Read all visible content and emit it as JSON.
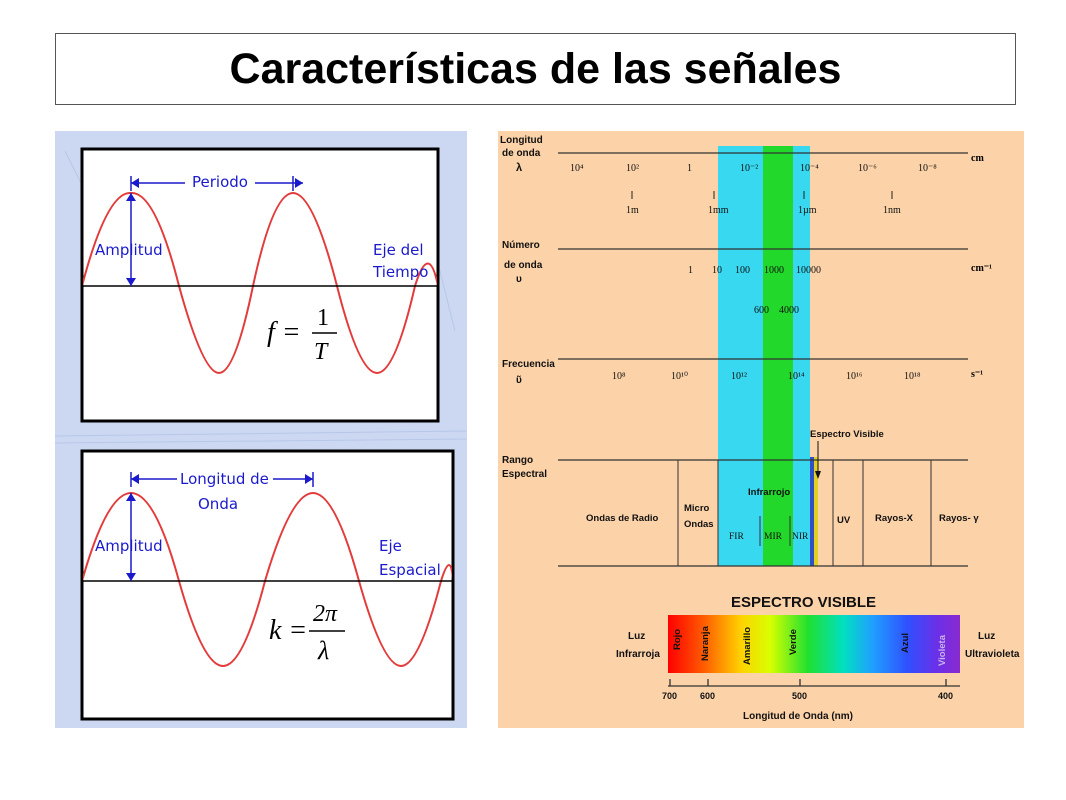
{
  "title": "Características de las señales",
  "time_panel": {
    "period_label": "Periodo",
    "amplitude_label": "Amplitud",
    "axis_label_line1": "Eje del",
    "axis_label_line2": "Tiempo",
    "formula_lhs": "f =",
    "formula_num": "1",
    "formula_den": "T"
  },
  "space_panel": {
    "wavelength_label_line1": "Longitud de",
    "wavelength_label_line2": "Onda",
    "amplitude_label": "Amplitud",
    "axis_label_line1": "Eje",
    "axis_label_line2": "Espacial",
    "formula_lhs": "k =",
    "formula_num": "2π",
    "formula_den": "λ"
  },
  "spectrum": {
    "wavelength_row": {
      "label_line1": "Longitud",
      "label_line2": "de onda",
      "label_line3": "λ",
      "unit": "cm",
      "ticks": [
        "10⁴",
        "10²",
        "1",
        "10⁻²",
        "10⁻⁴",
        "10⁻⁶",
        "10⁻⁸"
      ],
      "sub_ticks": [
        "1m",
        "1mm",
        "1µm",
        "1nm"
      ]
    },
    "wavenumber_row": {
      "label_line1": "Número",
      "label_line2": "de onda",
      "label_line3": "υ",
      "unit": "cm⁻¹",
      "ticks": [
        "1",
        "10",
        "100",
        "1000",
        "10000"
      ],
      "sub_ticks": [
        "600",
        "4000"
      ]
    },
    "frequency_row": {
      "label_line1": "Frecuencia",
      "label_line2": "ῦ",
      "unit": "s⁻¹",
      "ticks": [
        "10⁸",
        "10¹⁰",
        "10¹²",
        "10¹⁴",
        "10¹⁶",
        "10¹⁸"
      ]
    },
    "visible_marker_label": "Espectro Visible",
    "range_label_line1": "Rango",
    "range_label_line2": "Espectral",
    "ranges": {
      "radio": "Ondas de Radio",
      "micro_line1": "Micro",
      "micro_line2": "Ondas",
      "infrared": "Infrarrojo",
      "fir": "FIR",
      "mir": "MIR",
      "nir": "NIR",
      "uv": "UV",
      "xray": "Rayos-X",
      "gamma": "Rayos- γ"
    },
    "visible": {
      "title": "ESPECTRO VISIBLE",
      "left_label_line1": "Luz",
      "left_label_line2": "Infrarroja",
      "right_label_line1": "Luz",
      "right_label_line2": "Ultravioleta",
      "colors": [
        "Rojo",
        "Naranja",
        "Amarillo",
        "Verde",
        "Azul",
        "Violeta"
      ],
      "axis_ticks": [
        "700",
        "600",
        "500",
        "400"
      ],
      "axis_label": "Longitud de Onda (nm)"
    },
    "band_colors": {
      "infrared": "#37d8f0",
      "mir": "#22d82a",
      "background": "#fcd2a8"
    }
  }
}
